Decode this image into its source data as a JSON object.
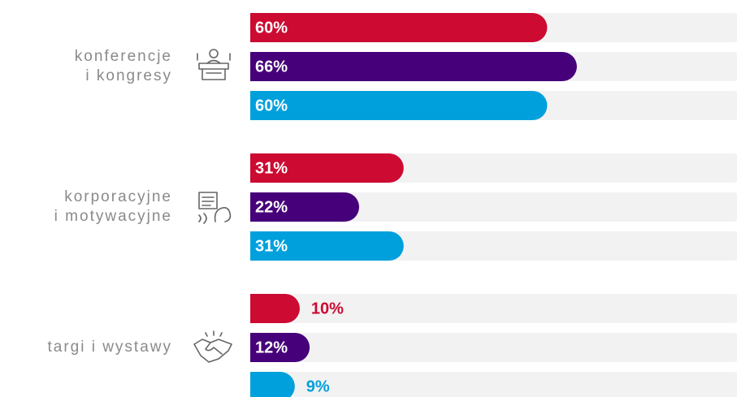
{
  "chart_data": {
    "type": "bar",
    "orientation": "horizontal",
    "categories": [
      "konferencje\ni kongresy",
      "korporacyjne\ni motywacyjne",
      "targi i wystawy"
    ],
    "series": [
      {
        "color": "#cc0a32",
        "values": [
          60,
          31,
          10
        ],
        "value_labels": [
          "60%",
          "31%",
          "10%"
        ]
      },
      {
        "color": "#46007a",
        "values": [
          66,
          22,
          12
        ],
        "value_labels": [
          "66%",
          "22%",
          "12%"
        ]
      },
      {
        "color": "#00a0dc",
        "values": [
          60,
          31,
          9
        ],
        "value_labels": [
          "60%",
          "31%",
          "9%"
        ]
      }
    ],
    "xlim": [
      0,
      100
    ]
  }
}
